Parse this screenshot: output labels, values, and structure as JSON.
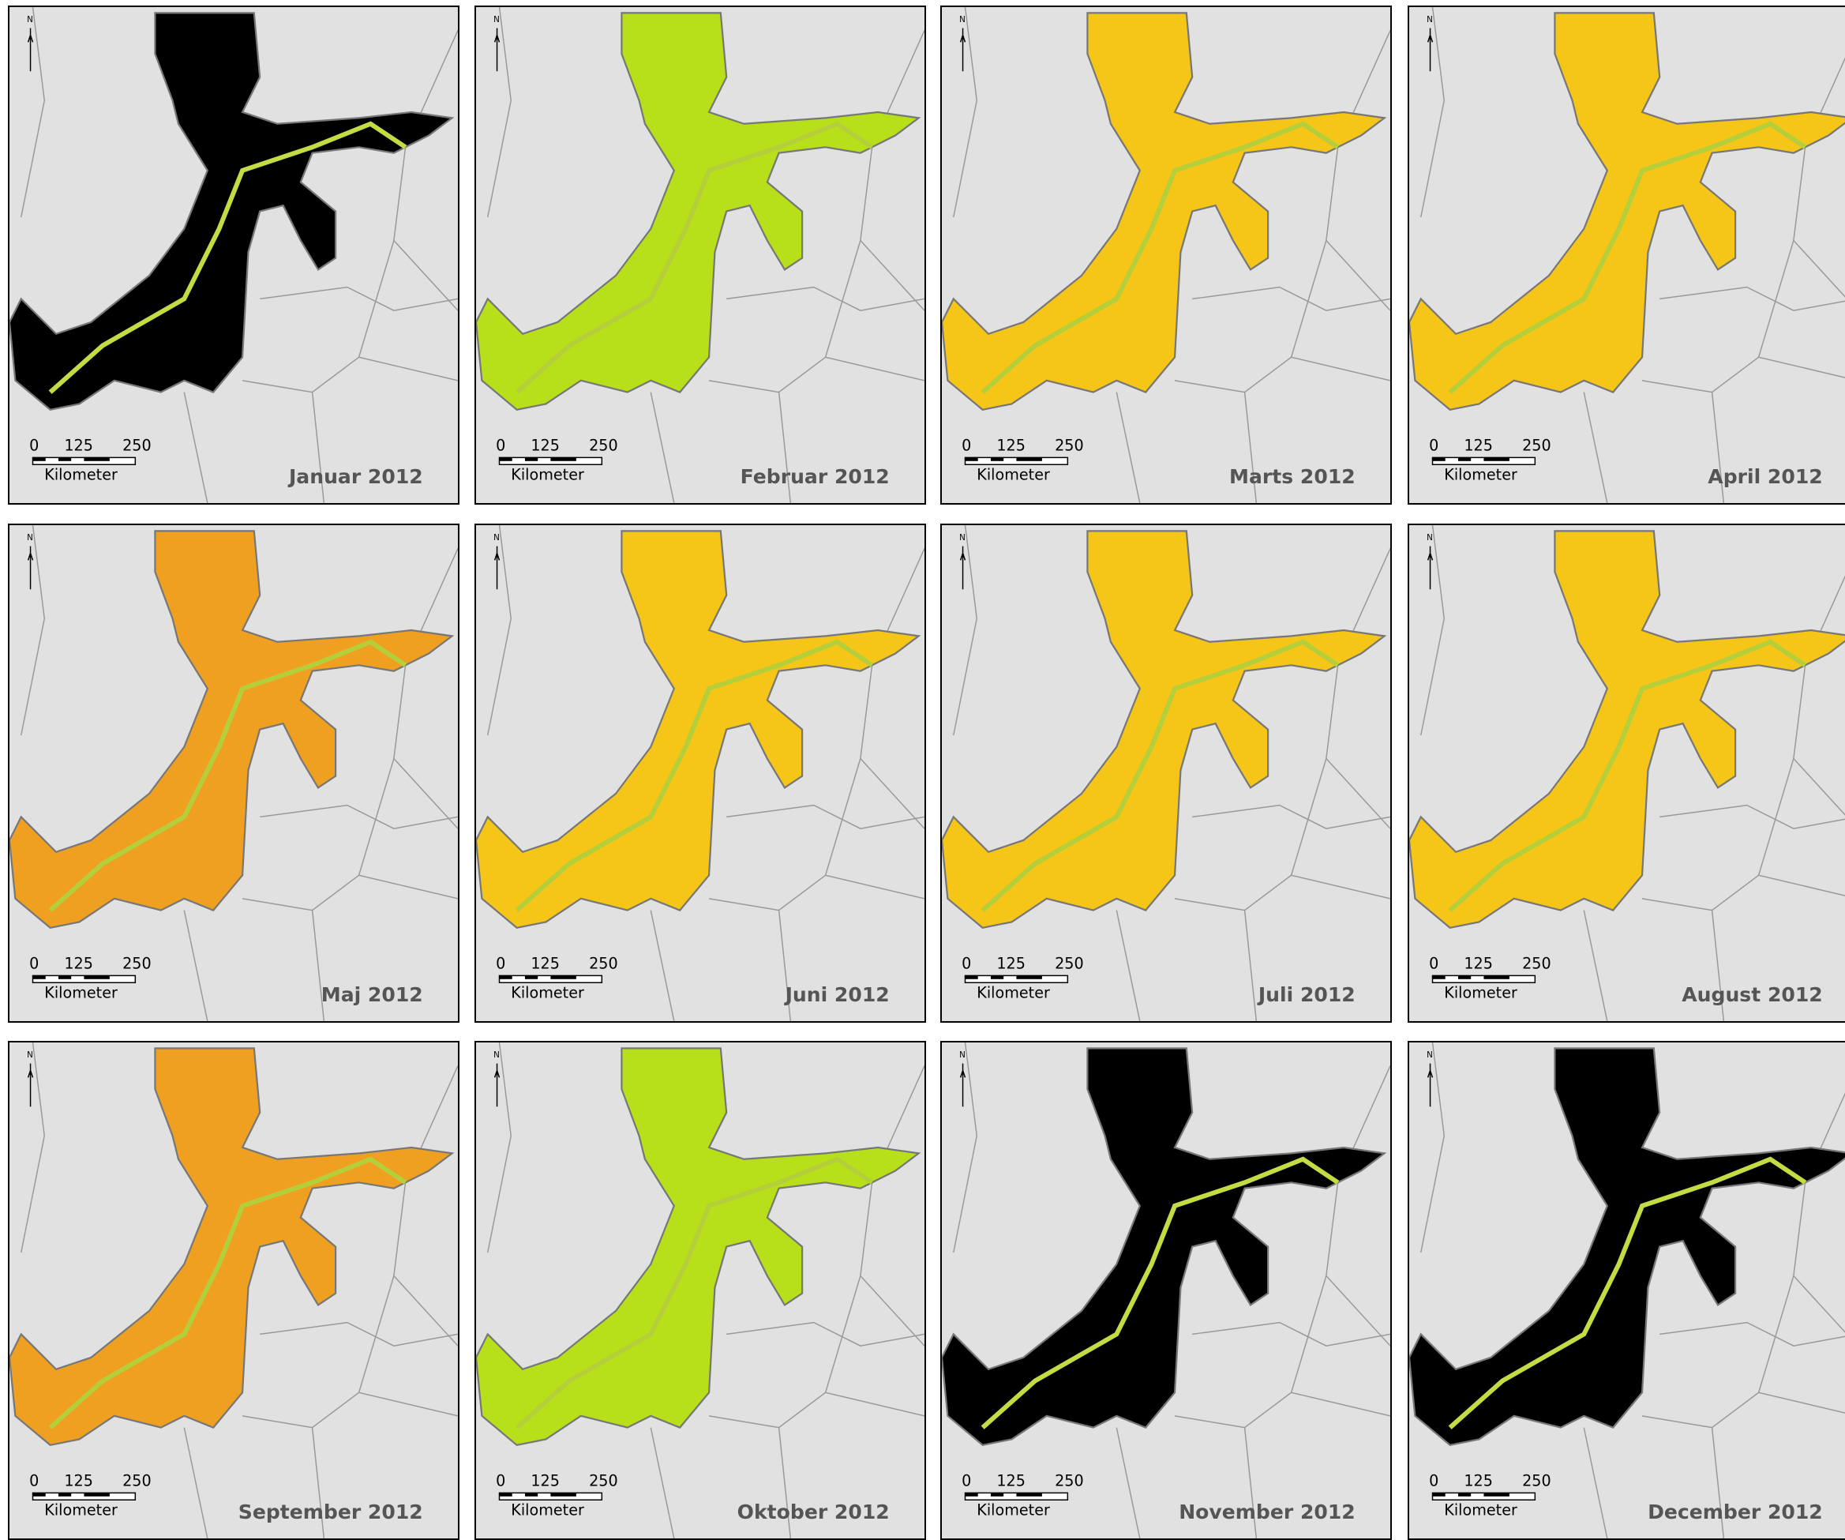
{
  "panels": [
    {
      "title": "Januar 2012"
    },
    {
      "title": "Februar 2012"
    },
    {
      "title": "Marts 2012"
    },
    {
      "title": "April 2012"
    },
    {
      "title": "Maj 2012"
    },
    {
      "title": "Juni 2012"
    },
    {
      "title": "Juli 2012"
    },
    {
      "title": "August 2012"
    },
    {
      "title": "September 2012"
    },
    {
      "title": "Oktober 2012"
    },
    {
      "title": "November 2012"
    },
    {
      "title": "December 2012"
    }
  ],
  "north": "N",
  "scale": {
    "ticks": [
      "0",
      "125",
      "250"
    ],
    "unit": "Kilometer"
  }
}
